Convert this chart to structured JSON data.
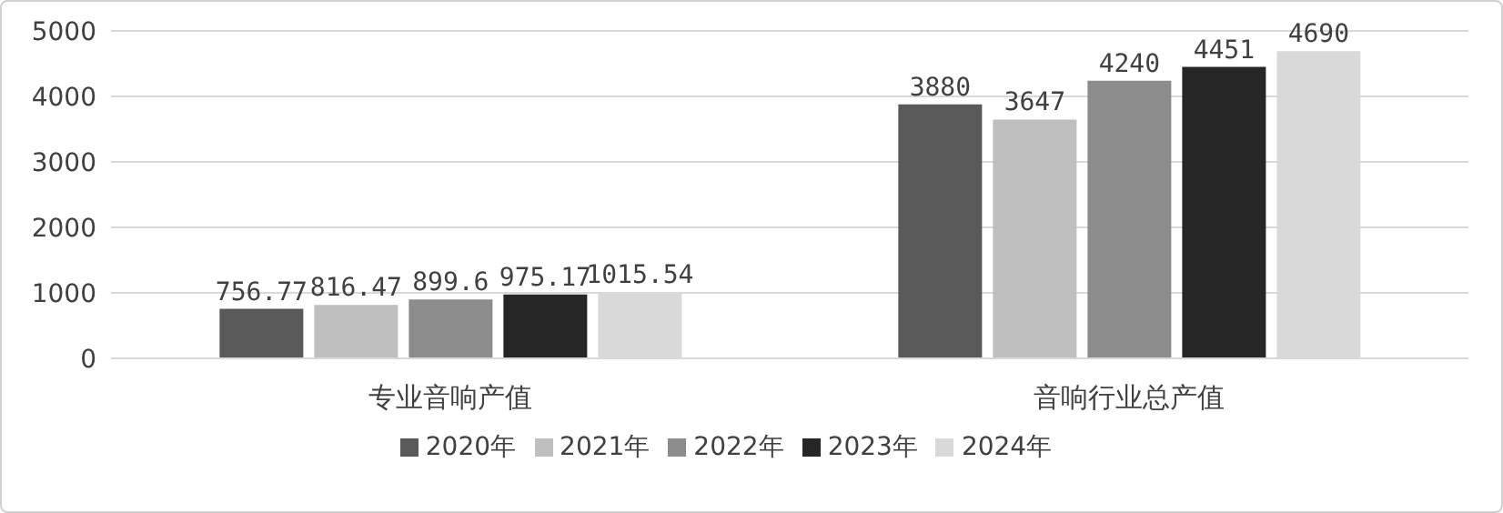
{
  "chart_data": {
    "type": "bar",
    "categories": [
      "专业音响产值",
      "音响行业总产值"
    ],
    "series": [
      {
        "name": "2020年",
        "color": "#595959",
        "values": [
          756.77,
          3880
        ]
      },
      {
        "name": "2021年",
        "color": "#bfbfbf",
        "values": [
          816.47,
          3647
        ]
      },
      {
        "name": "2022年",
        "color": "#8c8c8c",
        "values": [
          899.6,
          4240
        ]
      },
      {
        "name": "2023年",
        "color": "#262626",
        "values": [
          975.17,
          4451
        ]
      },
      {
        "name": "2024年",
        "color": "#d9d9d9",
        "values": [
          1015.54,
          4690
        ]
      }
    ],
    "ylim": [
      0,
      5000
    ],
    "yticks": [
      0,
      1000,
      2000,
      3000,
      4000,
      5000
    ],
    "grid": "y",
    "legend": "bottom",
    "data_labels": true
  }
}
